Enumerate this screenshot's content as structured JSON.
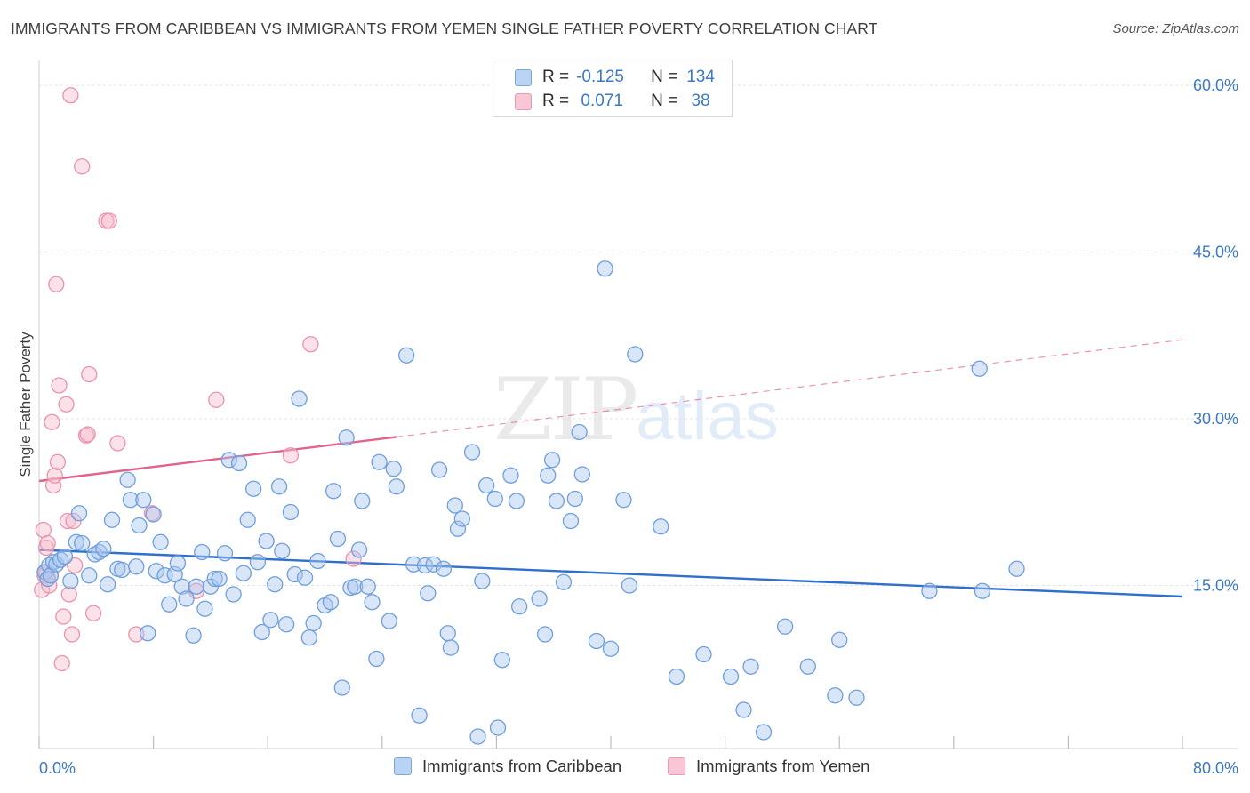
{
  "title": "IMMIGRANTS FROM CARIBBEAN VS IMMIGRANTS FROM YEMEN SINGLE FATHER POVERTY CORRELATION CHART",
  "source": "Source: ZipAtlas.com",
  "watermark": {
    "a": "ZIP",
    "b": "atlas"
  },
  "legend": {
    "rows": [
      {
        "r_label": "R =",
        "r_value": "-0.125",
        "n_label": "N =",
        "n_value": "134"
      },
      {
        "r_label": "R =",
        "r_value": " 0.071",
        "n_label": "N =",
        "n_value": " 38"
      }
    ]
  },
  "bottom_legend": {
    "caribbean": "Immigrants from Caribbean",
    "yemen": "Immigrants from Yemen"
  },
  "colors": {
    "blue_fill": "#aac8f0",
    "blue_stroke": "#6f9fdc",
    "blue_line": "#2e6fcf",
    "pink_fill": "#f6bccd",
    "pink_stroke": "#ea94ae",
    "pink_line": "#e2648e",
    "grid": "#e3e3e3",
    "axis_text": "#3a78c8"
  },
  "chart_data": {
    "type": "scatter",
    "title": "IMMIGRANTS FROM CARIBBEAN VS IMMIGRANTS FROM YEMEN SINGLE FATHER POVERTY CORRELATION CHART",
    "xlabel": "",
    "ylabel": "Single Father Poverty",
    "xlim": [
      0,
      80
    ],
    "ylim": [
      0,
      60
    ],
    "x_tick_labels": [
      "0.0%",
      "80.0%"
    ],
    "y_ticks": [
      15,
      30,
      45,
      60
    ],
    "y_tick_labels": [
      "15.0%",
      "30.0%",
      "45.0%",
      "60.0%"
    ],
    "series": [
      {
        "name": "Immigrants from Caribbean",
        "color": "blue",
        "R": -0.125,
        "N": 134,
        "trend": {
          "x": [
            0,
            80
          ],
          "y": [
            18.2,
            14.0
          ],
          "dashed_after": null
        },
        "points": [
          [
            0.4,
            16.2
          ],
          [
            0.6,
            15.6
          ],
          [
            0.7,
            16.8
          ],
          [
            0.8,
            15.9
          ],
          [
            1.0,
            17.1
          ],
          [
            1.2,
            16.9
          ],
          [
            1.5,
            17.3
          ],
          [
            1.8,
            17.6
          ],
          [
            2.2,
            15.4
          ],
          [
            2.6,
            18.9
          ],
          [
            2.8,
            21.5
          ],
          [
            3.0,
            18.8
          ],
          [
            3.5,
            15.9
          ],
          [
            3.9,
            17.8
          ],
          [
            4.2,
            18.0
          ],
          [
            4.5,
            18.3
          ],
          [
            4.8,
            15.1
          ],
          [
            5.1,
            20.9
          ],
          [
            5.5,
            16.5
          ],
          [
            5.8,
            16.4
          ],
          [
            6.2,
            24.5
          ],
          [
            6.4,
            22.7
          ],
          [
            6.8,
            16.7
          ],
          [
            7.0,
            20.4
          ],
          [
            7.3,
            22.7
          ],
          [
            7.6,
            10.7
          ],
          [
            8.0,
            21.4
          ],
          [
            8.2,
            16.3
          ],
          [
            8.5,
            18.9
          ],
          [
            8.8,
            15.9
          ],
          [
            9.1,
            13.3
          ],
          [
            9.5,
            16.0
          ],
          [
            9.7,
            17.0
          ],
          [
            10.0,
            14.9
          ],
          [
            10.3,
            13.8
          ],
          [
            10.8,
            10.5
          ],
          [
            11.0,
            14.9
          ],
          [
            11.4,
            18.0
          ],
          [
            11.6,
            12.9
          ],
          [
            12.0,
            14.9
          ],
          [
            12.3,
            15.6
          ],
          [
            12.6,
            15.6
          ],
          [
            13.0,
            17.9
          ],
          [
            13.3,
            26.3
          ],
          [
            13.6,
            14.2
          ],
          [
            14.0,
            26.0
          ],
          [
            14.3,
            16.1
          ],
          [
            14.6,
            20.9
          ],
          [
            15.0,
            23.7
          ],
          [
            15.3,
            17.1
          ],
          [
            15.6,
            10.8
          ],
          [
            15.9,
            19.0
          ],
          [
            16.2,
            11.9
          ],
          [
            16.5,
            15.1
          ],
          [
            16.8,
            23.9
          ],
          [
            17.0,
            18.1
          ],
          [
            17.3,
            11.5
          ],
          [
            17.6,
            21.6
          ],
          [
            17.9,
            16.0
          ],
          [
            18.2,
            31.8
          ],
          [
            18.6,
            15.7
          ],
          [
            18.9,
            10.3
          ],
          [
            19.2,
            11.6
          ],
          [
            19.5,
            17.2
          ],
          [
            20.0,
            13.2
          ],
          [
            20.4,
            13.5
          ],
          [
            20.6,
            23.5
          ],
          [
            20.9,
            19.2
          ],
          [
            21.2,
            5.8
          ],
          [
            21.5,
            28.3
          ],
          [
            21.8,
            14.8
          ],
          [
            22.1,
            14.9
          ],
          [
            22.4,
            18.2
          ],
          [
            22.6,
            22.6
          ],
          [
            23.0,
            14.9
          ],
          [
            23.3,
            13.5
          ],
          [
            23.6,
            8.4
          ],
          [
            23.8,
            26.1
          ],
          [
            24.5,
            11.8
          ],
          [
            24.8,
            25.5
          ],
          [
            25.0,
            23.9
          ],
          [
            25.7,
            35.7
          ],
          [
            26.2,
            16.9
          ],
          [
            26.6,
            3.3
          ],
          [
            27.0,
            16.8
          ],
          [
            27.2,
            14.3
          ],
          [
            27.6,
            16.9
          ],
          [
            28.0,
            25.4
          ],
          [
            28.3,
            16.5
          ],
          [
            28.6,
            10.7
          ],
          [
            28.8,
            9.4
          ],
          [
            29.1,
            22.2
          ],
          [
            29.3,
            20.1
          ],
          [
            29.6,
            21.0
          ],
          [
            30.3,
            27.0
          ],
          [
            30.7,
            1.4
          ],
          [
            31.0,
            15.4
          ],
          [
            31.3,
            24.0
          ],
          [
            31.9,
            22.8
          ],
          [
            32.1,
            2.2
          ],
          [
            32.4,
            8.3
          ],
          [
            33.0,
            24.9
          ],
          [
            33.4,
            22.6
          ],
          [
            33.6,
            13.1
          ],
          [
            35.0,
            13.8
          ],
          [
            35.4,
            10.6
          ],
          [
            35.6,
            24.9
          ],
          [
            35.9,
            26.3
          ],
          [
            36.2,
            22.6
          ],
          [
            36.7,
            15.3
          ],
          [
            37.2,
            20.8
          ],
          [
            37.5,
            22.8
          ],
          [
            37.8,
            28.8
          ],
          [
            38.0,
            25.0
          ],
          [
            39.0,
            10.0
          ],
          [
            39.6,
            43.5
          ],
          [
            40.0,
            9.3
          ],
          [
            40.9,
            22.7
          ],
          [
            41.3,
            15.0
          ],
          [
            41.7,
            35.8
          ],
          [
            43.5,
            20.3
          ],
          [
            44.6,
            6.8
          ],
          [
            46.5,
            8.8
          ],
          [
            48.4,
            6.8
          ],
          [
            49.3,
            3.8
          ],
          [
            49.8,
            7.7
          ],
          [
            50.7,
            1.8
          ],
          [
            52.2,
            11.3
          ],
          [
            53.8,
            7.7
          ],
          [
            55.7,
            5.1
          ],
          [
            56.0,
            10.1
          ],
          [
            57.2,
            4.9
          ],
          [
            62.3,
            14.5
          ],
          [
            65.8,
            34.5
          ],
          [
            66.0,
            14.5
          ],
          [
            68.4,
            16.5
          ]
        ]
      },
      {
        "name": "Immigrants from Yemen",
        "color": "pink",
        "R": 0.071,
        "N": 38,
        "trend": {
          "x": [
            0,
            80
          ],
          "y": [
            24.4,
            37.1
          ],
          "solid_until_x": 25
        },
        "points": [
          [
            0.2,
            14.6
          ],
          [
            0.3,
            20.0
          ],
          [
            0.4,
            15.9
          ],
          [
            0.5,
            16.2
          ],
          [
            0.5,
            18.4
          ],
          [
            0.6,
            18.8
          ],
          [
            0.7,
            15.0
          ],
          [
            0.8,
            15.9
          ],
          [
            0.9,
            29.7
          ],
          [
            1.0,
            24.0
          ],
          [
            1.1,
            24.9
          ],
          [
            1.2,
            42.1
          ],
          [
            1.3,
            26.1
          ],
          [
            1.4,
            33.0
          ],
          [
            1.6,
            8.0
          ],
          [
            1.7,
            12.2
          ],
          [
            1.9,
            31.3
          ],
          [
            2.0,
            20.8
          ],
          [
            2.1,
            14.2
          ],
          [
            2.2,
            59.1
          ],
          [
            2.3,
            10.6
          ],
          [
            2.4,
            20.8
          ],
          [
            2.5,
            16.8
          ],
          [
            3.0,
            52.7
          ],
          [
            3.3,
            28.5
          ],
          [
            3.4,
            28.6
          ],
          [
            3.5,
            34.0
          ],
          [
            3.8,
            12.5
          ],
          [
            4.7,
            47.8
          ],
          [
            4.9,
            47.8
          ],
          [
            5.5,
            27.8
          ],
          [
            6.8,
            10.6
          ],
          [
            7.9,
            21.5
          ],
          [
            11.0,
            14.5
          ],
          [
            12.4,
            31.7
          ],
          [
            17.6,
            26.7
          ],
          [
            19.0,
            36.7
          ],
          [
            22.0,
            17.4
          ]
        ]
      }
    ]
  }
}
